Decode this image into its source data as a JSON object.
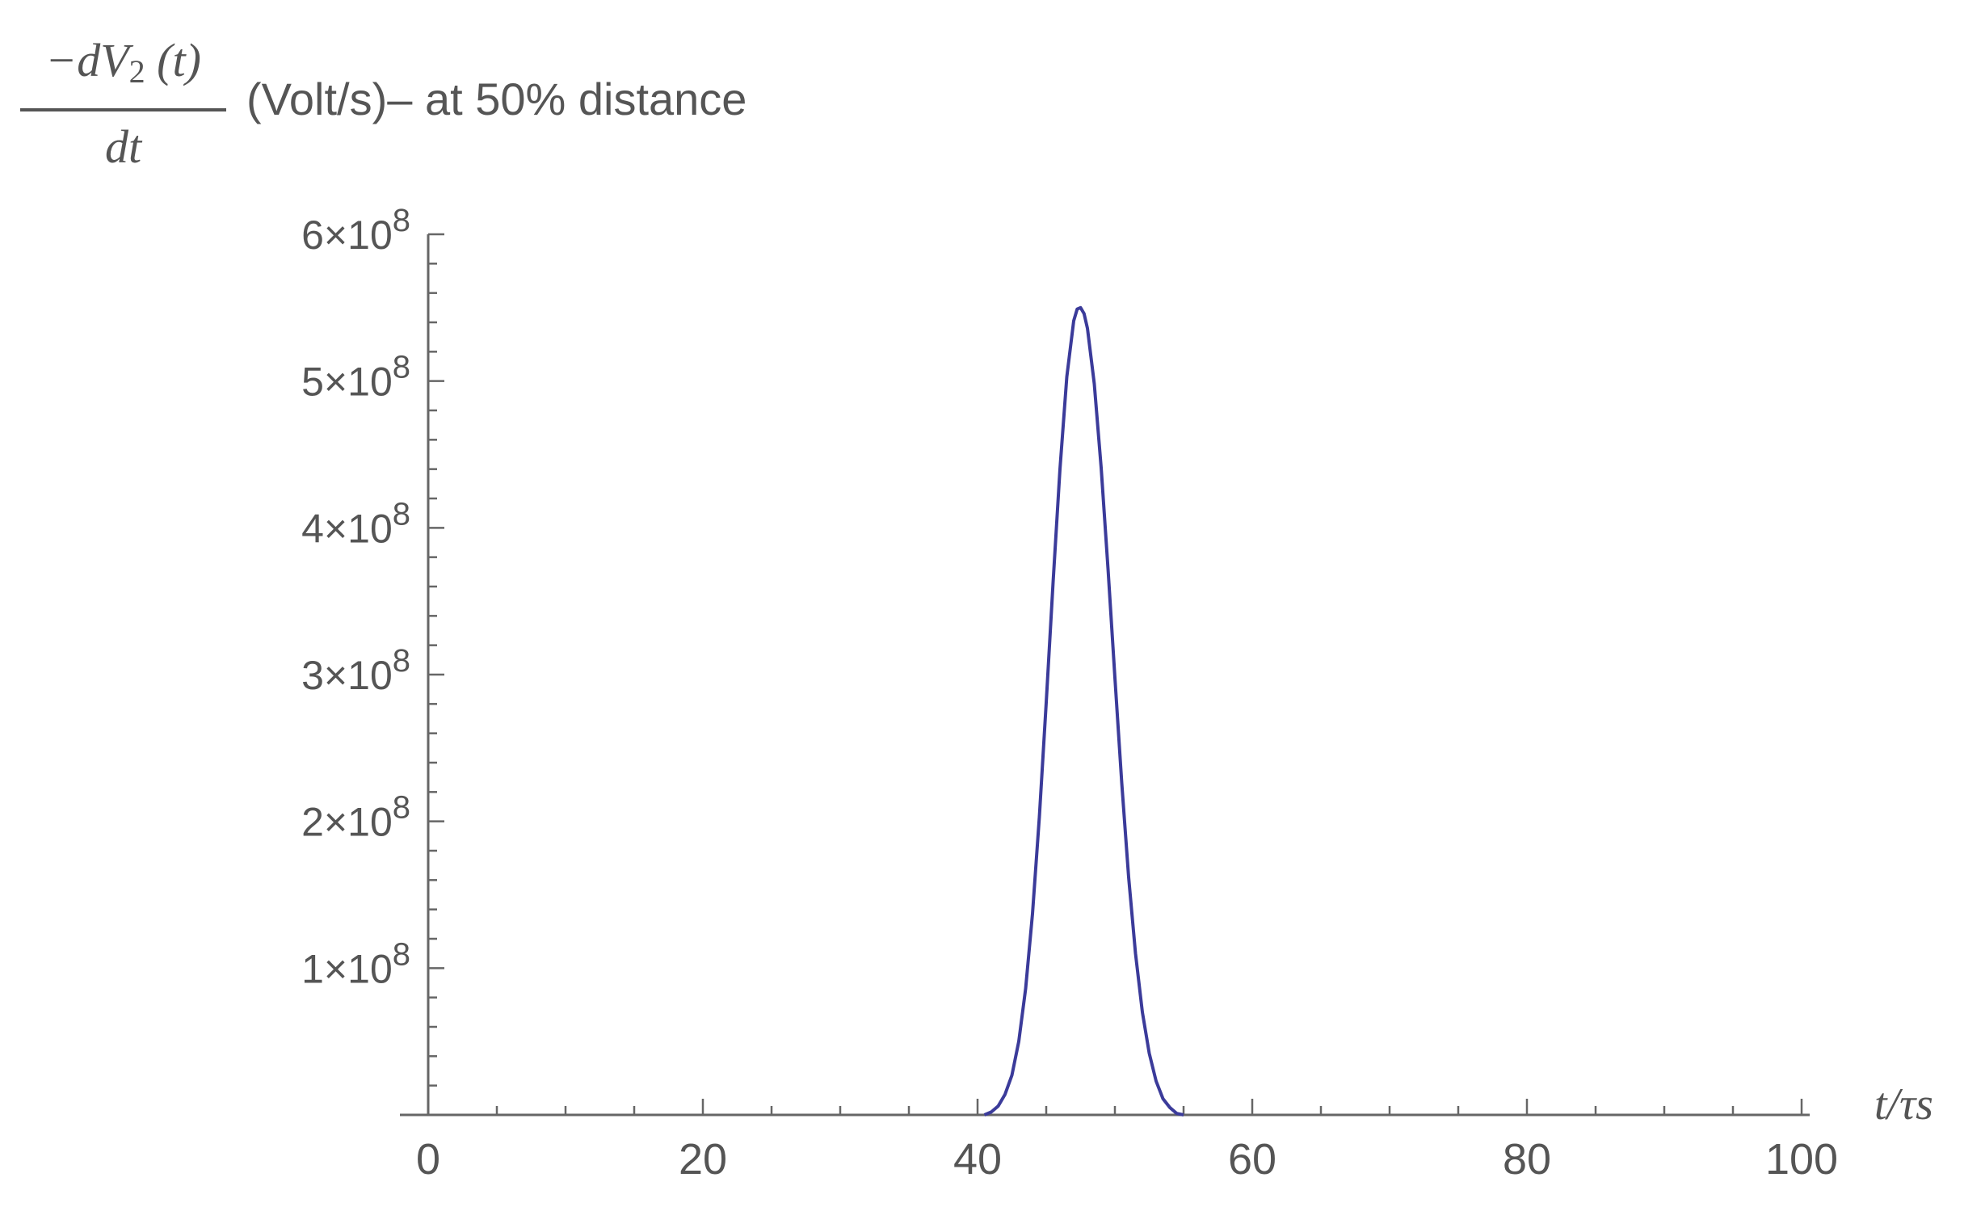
{
  "chart_data": {
    "type": "line",
    "ylabel": {
      "numerator_prefix": "−d",
      "numerator_var": "V",
      "numerator_sub": "2",
      "numerator_arg": "(t)",
      "denominator": "dt",
      "suffix": "(Volt/s)– at 50% distance"
    },
    "xlabel": "t/τs",
    "xlim": [
      0,
      100
    ],
    "ylim": [
      0,
      600000000
    ],
    "x_ticks": [
      "0",
      "20",
      "40",
      "60",
      "80",
      "100"
    ],
    "y_ticks": [
      {
        "value": 100000000,
        "mant": "1",
        "exp": "8"
      },
      {
        "value": 200000000,
        "mant": "2",
        "exp": "8"
      },
      {
        "value": 300000000,
        "mant": "3",
        "exp": "8"
      },
      {
        "value": 400000000,
        "mant": "4",
        "exp": "8"
      },
      {
        "value": 500000000,
        "mant": "5",
        "exp": "8"
      },
      {
        "value": 600000000,
        "mant": "6",
        "exp": "8"
      }
    ],
    "grid": false,
    "series": [
      {
        "color": "#3b3b9a",
        "x": [
          40.5,
          41,
          41.5,
          42,
          42.5,
          43,
          43.5,
          44,
          44.5,
          45,
          45.5,
          46,
          46.5,
          47,
          47.25,
          47.5,
          47.75,
          48,
          48.5,
          49,
          49.5,
          50,
          50.5,
          51,
          51.5,
          52,
          52.5,
          53,
          53.5,
          54,
          54.5,
          55
        ],
        "y": [
          0,
          2000000,
          6000000,
          14000000,
          27000000,
          50000000,
          86000000,
          137000000,
          203000000,
          281000000,
          363000000,
          440000000,
          503000000,
          541000000,
          549000000,
          550000000,
          546000000,
          536000000,
          498000000,
          441000000,
          372000000,
          298000000,
          226000000,
          162000000,
          110000000,
          70000000,
          42000000,
          23000000,
          11000000,
          5000000,
          1000000,
          0
        ]
      }
    ]
  }
}
